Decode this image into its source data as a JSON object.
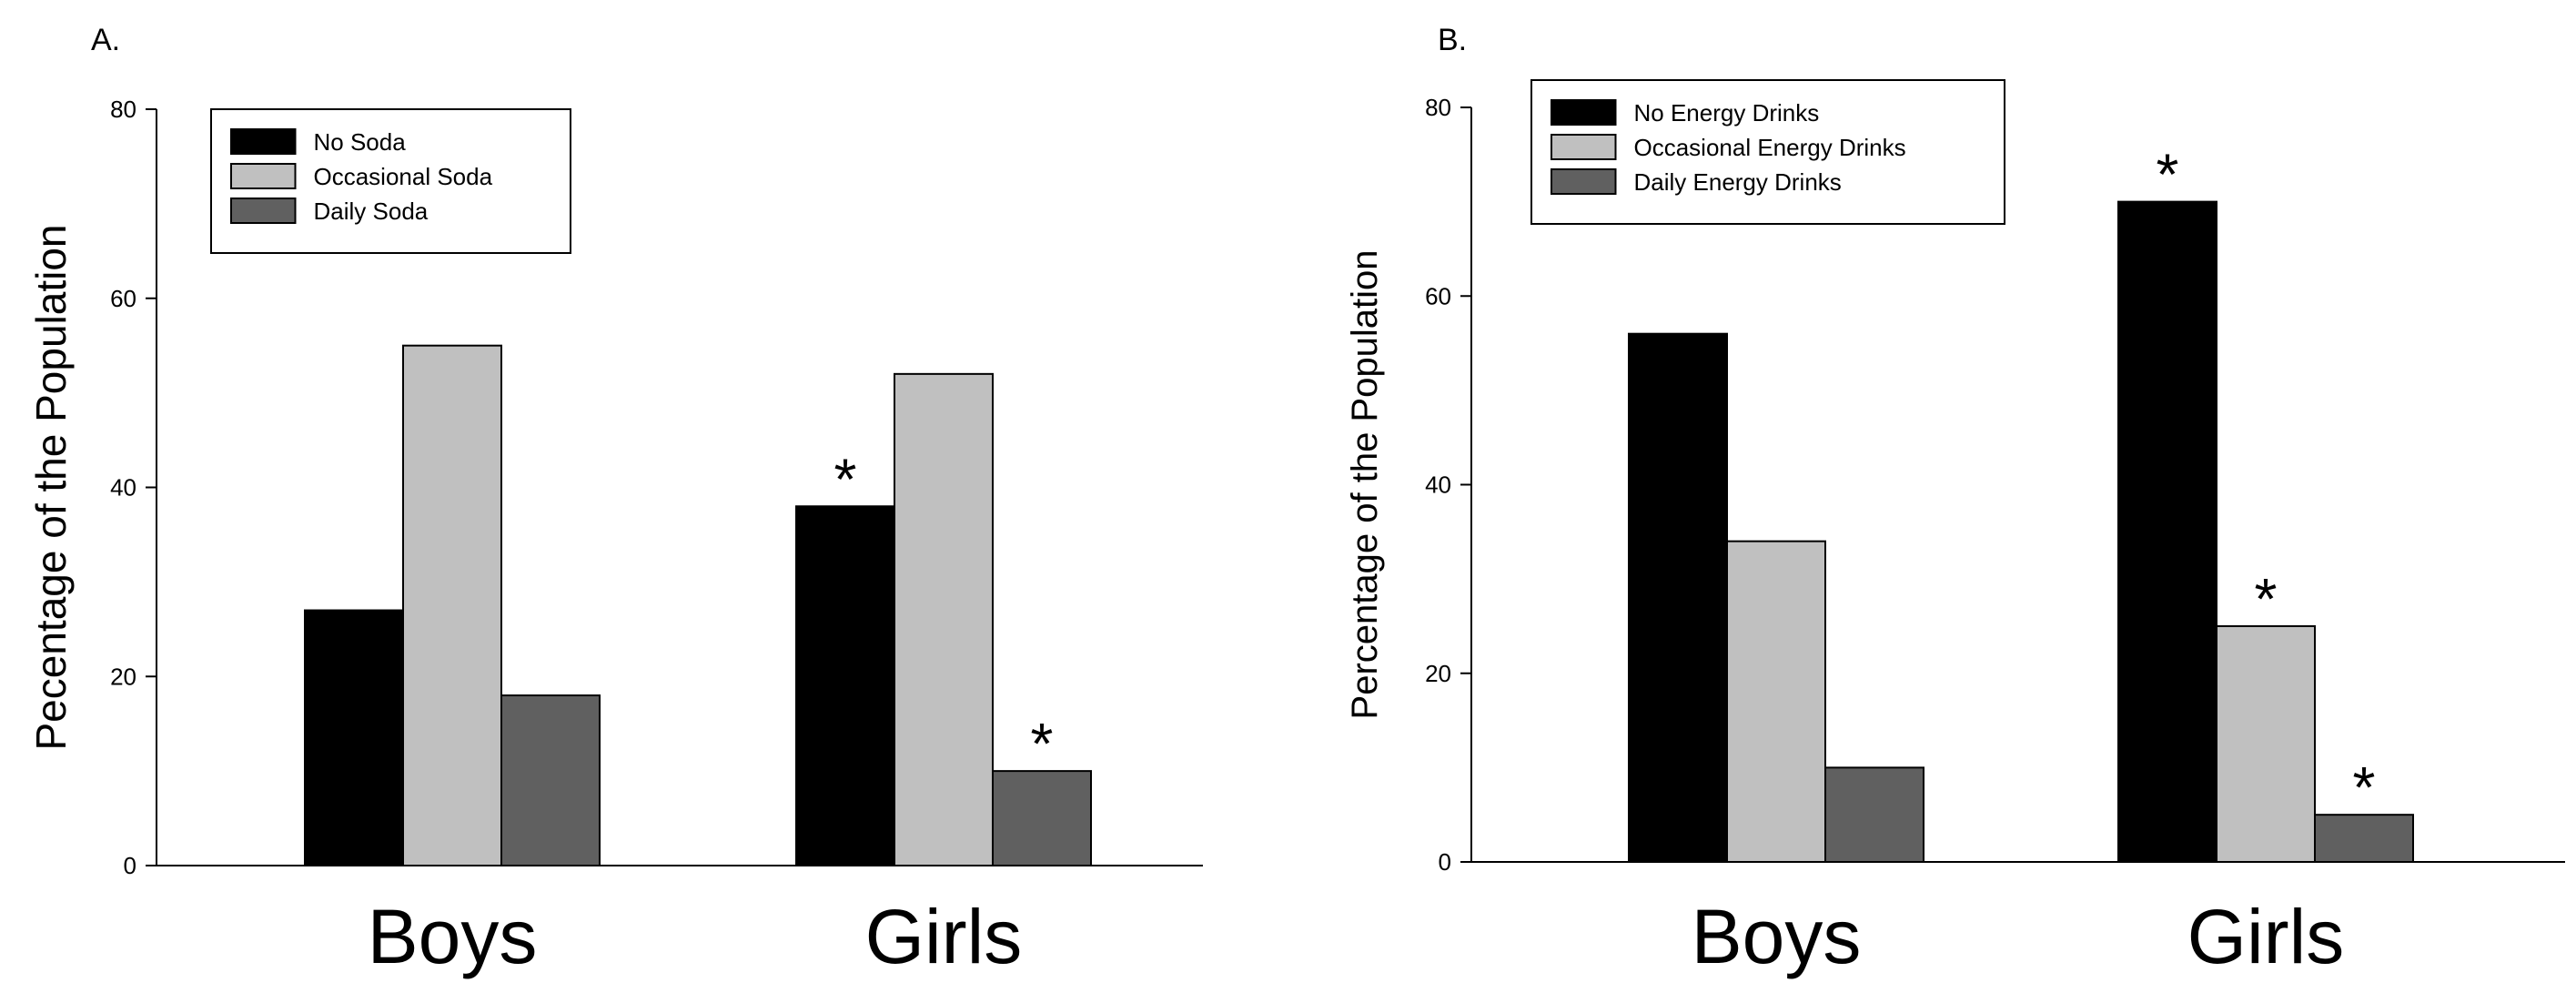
{
  "chart_data": [
    {
      "type": "bar",
      "panel_label": "A.",
      "ylabel": "Pecentage of the Population",
      "ylim": [
        0,
        80
      ],
      "yticks": [
        0,
        20,
        40,
        60,
        80
      ],
      "categories": [
        "Boys",
        "Girls"
      ],
      "series": [
        {
          "name": "No Soda",
          "color": "#000000",
          "values": [
            27,
            38
          ]
        },
        {
          "name": "Occasional Soda",
          "color": "#c0c0c0",
          "values": [
            55,
            52
          ]
        },
        {
          "name": "Daily Soda",
          "color": "#606060",
          "values": [
            18,
            10
          ]
        }
      ],
      "significance": [
        {
          "category": "Girls",
          "series": "No Soda",
          "mark": "*"
        },
        {
          "category": "Girls",
          "series": "Daily Soda",
          "mark": "*"
        }
      ],
      "legend": "top-left",
      "grid": false
    },
    {
      "type": "bar",
      "panel_label": "B.",
      "ylabel": "Percentage of the Population",
      "ylim": [
        0,
        80
      ],
      "yticks": [
        0,
        20,
        40,
        60,
        80
      ],
      "categories": [
        "Boys",
        "Girls"
      ],
      "series": [
        {
          "name": "No Energy Drinks",
          "color": "#000000",
          "values": [
            56,
            70
          ]
        },
        {
          "name": "Occasional Energy Drinks",
          "color": "#c0c0c0",
          "values": [
            34,
            25
          ]
        },
        {
          "name": "Daily Energy Drinks",
          "color": "#606060",
          "values": [
            10,
            5
          ]
        }
      ],
      "significance": [
        {
          "category": "Girls",
          "series": "No Energy Drinks",
          "mark": "*"
        },
        {
          "category": "Girls",
          "series": "Occasional Energy Drinks",
          "mark": "*"
        },
        {
          "category": "Girls",
          "series": "Daily Energy Drinks",
          "mark": "*"
        }
      ],
      "legend": "top-left",
      "grid": false
    }
  ]
}
